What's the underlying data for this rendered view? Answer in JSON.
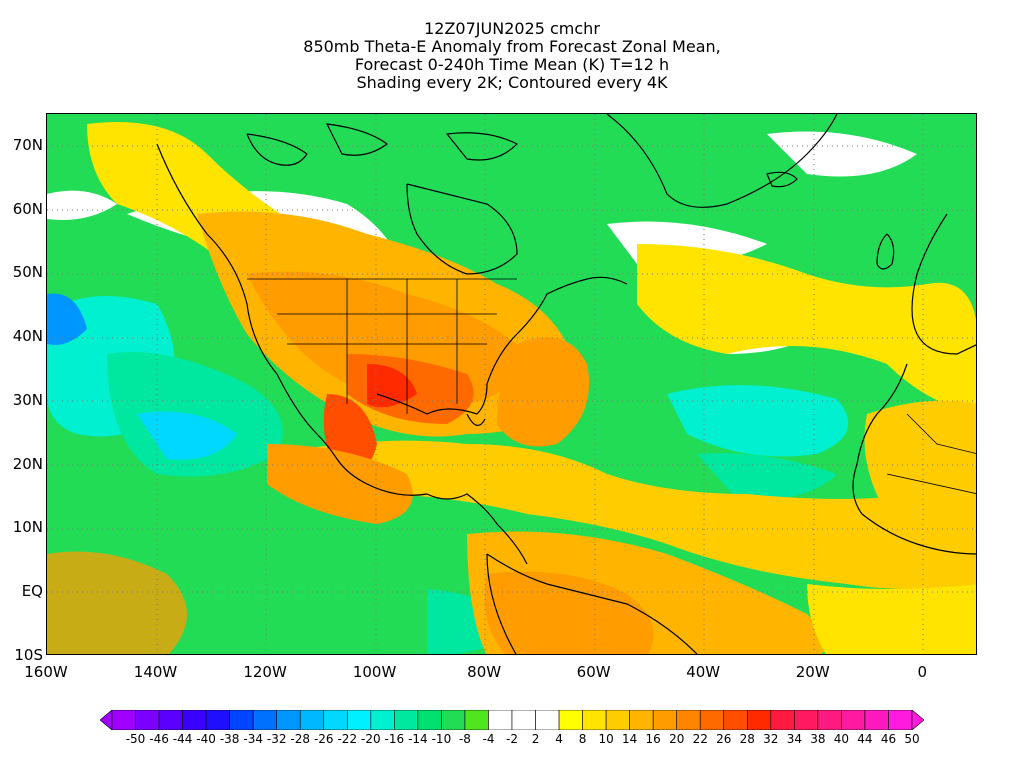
{
  "title_lines": [
    "12Z07JUN2025 cmchr",
    "850mb Theta-E Anomaly from Forecast Zonal Mean,",
    "Forecast 0-240h Time Mean (K) T=12 h",
    "Shading every 2K; Contoured every 4K"
  ],
  "map": {
    "lat_range": [
      -10,
      75
    ],
    "lon_range": [
      -160,
      10
    ],
    "lat_ticks": [
      {
        "value": 70,
        "label": "70N"
      },
      {
        "value": 60,
        "label": "60N"
      },
      {
        "value": 50,
        "label": "50N"
      },
      {
        "value": 40,
        "label": "40N"
      },
      {
        "value": 30,
        "label": "30N"
      },
      {
        "value": 20,
        "label": "20N"
      },
      {
        "value": 10,
        "label": "10N"
      },
      {
        "value": 0,
        "label": "EQ"
      },
      {
        "value": -10,
        "label": "10S"
      }
    ],
    "lon_ticks": [
      {
        "value": -160,
        "label": "160W"
      },
      {
        "value": -140,
        "label": "140W"
      },
      {
        "value": -120,
        "label": "120W"
      },
      {
        "value": -100,
        "label": "100W"
      },
      {
        "value": -80,
        "label": "80W"
      },
      {
        "value": -60,
        "label": "60W"
      },
      {
        "value": -40,
        "label": "40W"
      },
      {
        "value": -20,
        "label": "20W"
      },
      {
        "value": 0,
        "label": "0"
      }
    ],
    "gridlines": "dotted"
  },
  "colorbar": {
    "labels": [
      "-50",
      "-46",
      "-44",
      "-40",
      "-38",
      "-34",
      "-32",
      "-28",
      "-26",
      "-22",
      "-20",
      "-16",
      "-14",
      "-10",
      "-8",
      "-4",
      "-2",
      "2",
      "4",
      "8",
      "10",
      "14",
      "16",
      "20",
      "22",
      "26",
      "28",
      "32",
      "34",
      "38",
      "40",
      "44",
      "46",
      "50"
    ],
    "colors": [
      "#a000ff",
      "#7b00ff",
      "#5a00ff",
      "#3a00ff",
      "#1e10ff",
      "#0046ff",
      "#0070ff",
      "#0096ff",
      "#00b8ff",
      "#00d8ff",
      "#00f0ff",
      "#00f0d0",
      "#00e8a0",
      "#00e070",
      "#22dc56",
      "#50e61e",
      "#ffffff",
      "#ffffff",
      "#ffffff",
      "#ffff00",
      "#ffe400",
      "#ffcc00",
      "#ffb400",
      "#ff9c00",
      "#ff8400",
      "#ff6a00",
      "#ff4e00",
      "#ff2a00",
      "#ff1a40",
      "#ff1a60",
      "#ff1a80",
      "#ff1aa0",
      "#ff1ac0",
      "#ff1ae0"
    ]
  }
}
